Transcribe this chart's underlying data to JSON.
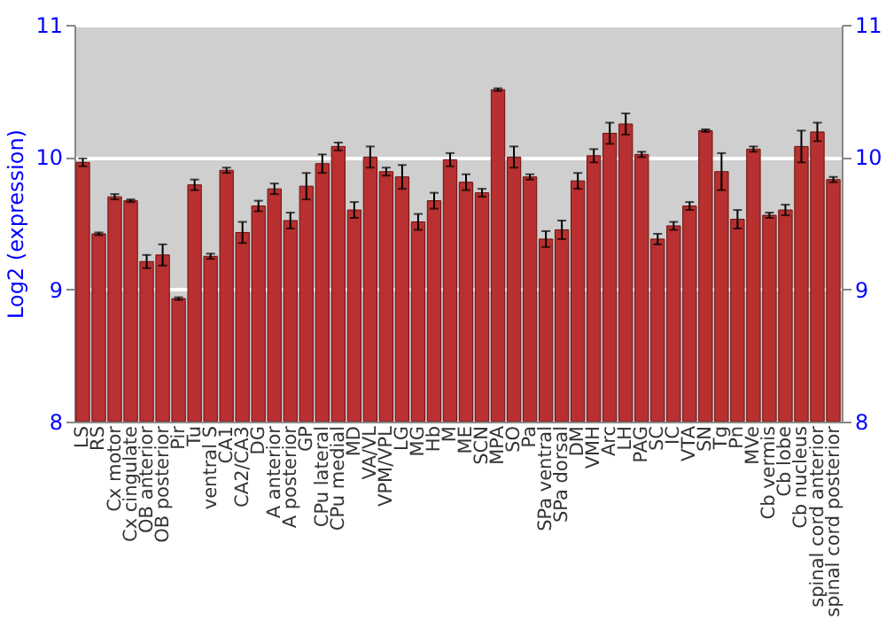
{
  "chart_data": {
    "type": "bar",
    "ylabel": "Log2 (expression)",
    "categories": [
      "LS",
      "RS",
      "Cx motor",
      "Cx cingulate",
      "OB anterior",
      "OB posterior",
      "Pir",
      "Tu",
      "ventral S",
      "CA1",
      "CA2/CA3",
      "DG",
      "A anterior",
      "A posterior",
      "GP",
      "CPu lateral",
      "CPu medial",
      "MD",
      "VA/VL",
      "VPM/VPL",
      "LG",
      "MG",
      "Hb",
      "M",
      "ME",
      "SCN",
      "MPA",
      "SO",
      "Pa",
      "SPa ventral",
      "SPa dorsal",
      "DM",
      "VMH",
      "Arc",
      "LH",
      "PAG",
      "SC",
      "IC",
      "VTA",
      "SN",
      "Tg",
      "Pn",
      "MVe",
      "Cb vermis",
      "Cb lobe",
      "Cb nucleus",
      "spinal cord anterior",
      "spinal cord posterior"
    ],
    "values": [
      9.96,
      9.42,
      9.7,
      9.67,
      9.21,
      9.26,
      8.93,
      9.79,
      9.25,
      9.9,
      9.43,
      9.63,
      9.76,
      9.52,
      9.78,
      9.95,
      10.08,
      9.6,
      10.0,
      9.89,
      9.85,
      9.51,
      9.67,
      9.98,
      9.81,
      9.73,
      10.51,
      10.0,
      9.85,
      9.38,
      9.45,
      9.82,
      10.01,
      10.18,
      10.25,
      10.02,
      9.38,
      9.48,
      9.63,
      10.2,
      9.89,
      9.53,
      10.06,
      9.56,
      9.6,
      10.08,
      10.19,
      9.83
    ],
    "errors": [
      0.03,
      0.01,
      0.02,
      0.01,
      0.05,
      0.08,
      0.01,
      0.04,
      0.02,
      0.02,
      0.08,
      0.04,
      0.04,
      0.06,
      0.1,
      0.07,
      0.03,
      0.06,
      0.08,
      0.03,
      0.09,
      0.06,
      0.06,
      0.05,
      0.06,
      0.03,
      0.01,
      0.08,
      0.02,
      0.06,
      0.07,
      0.06,
      0.05,
      0.08,
      0.08,
      0.02,
      0.04,
      0.03,
      0.03,
      0.01,
      0.14,
      0.07,
      0.02,
      0.02,
      0.04,
      0.12,
      0.07,
      0.02
    ],
    "color": "#b83030",
    "ylim": [
      8,
      11
    ],
    "yticks": [
      8,
      9,
      10,
      11
    ],
    "y2lim": [
      8,
      11
    ],
    "y2ticks": [
      8,
      9,
      10,
      11
    ],
    "grid": "y"
  }
}
